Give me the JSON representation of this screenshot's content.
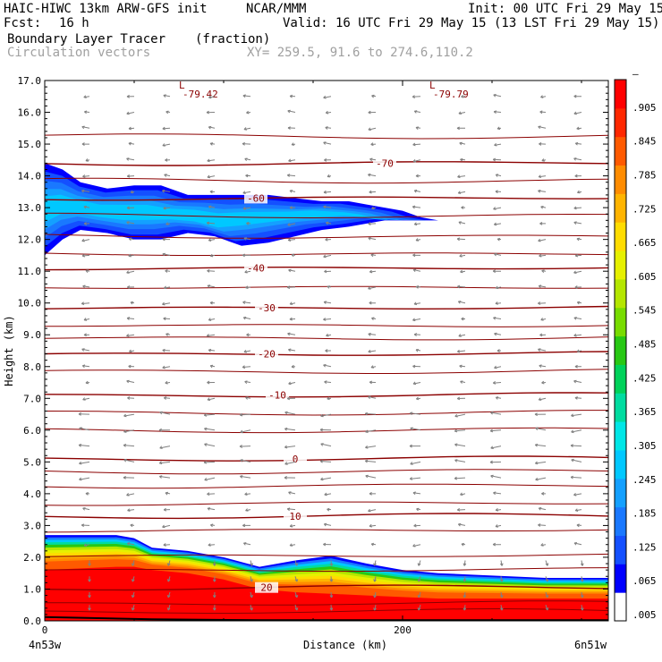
{
  "header": {
    "model": "HAIC-HIWC 13km ARW-GFS init",
    "center": "NCAR/MMM",
    "init": "Init: 00 UTC Fri 29 May 15",
    "fcst_label": "Fcst:",
    "fcst_value": "16 h",
    "valid": "Valid: 16 UTC Fri 29 May 15 (13 LST Fri 29 May 15)",
    "field_name": "Boundary Layer Tracer",
    "field_units": "(fraction)",
    "vectors_label": "Circulation vectors",
    "xy": "XY= 259.5, 91.6 to 274.6,110.2"
  },
  "chart_data": {
    "type": "heatmap",
    "title": "Boundary Layer Tracer",
    "xlabel": "Distance (km)",
    "ylabel": "Height (km)",
    "xlim": [
      0,
      315
    ],
    "ylim": [
      0,
      17
    ],
    "x_ticks": [
      {
        "value": 0,
        "label": "0"
      },
      {
        "value": 200,
        "label": "200"
      }
    ],
    "x_end_labels": {
      "left": "4n53w",
      "right": "6n51w"
    },
    "y_ticks": [
      "0.0",
      "1.0",
      "2.0",
      "3.0",
      "4.0",
      "5.0",
      "6.0",
      "7.0",
      "8.0",
      "9.0",
      "10.0",
      "11.0",
      "12.0",
      "13.0",
      "14.0",
      "15.0",
      "16.0",
      "17.0"
    ],
    "colorbar": {
      "labels": [
        ".005",
        ".065",
        ".125",
        ".185",
        ".245",
        ".305",
        ".365",
        ".425",
        ".485",
        ".545",
        ".605",
        ".665",
        ".725",
        ".785",
        ".845",
        ".905",
        "–"
      ],
      "colors": [
        "#ffffff",
        "#0000ff",
        "#1450ff",
        "#1a78ff",
        "#14a0ff",
        "#00c8ff",
        "#00e6e6",
        "#00dca0",
        "#00d25a",
        "#28c814",
        "#78dc00",
        "#b4e600",
        "#e6f000",
        "#ffdc00",
        "#ffb400",
        "#ff8c00",
        "#ff5a00",
        "#ff2800",
        "#ff0000"
      ]
    },
    "upper_layer": {
      "top_km": [
        14.4,
        14.2,
        13.8,
        13.6,
        13.7,
        13.7,
        13.4,
        13.4,
        13.4,
        13.4,
        13.3,
        13.2,
        13.2,
        13.1,
        13.0,
        12.9,
        12.7,
        12.6
      ],
      "bottom_km": [
        11.5,
        12.0,
        12.3,
        12.2,
        12.0,
        12.0,
        12.2,
        12.1,
        11.8,
        11.9,
        12.1,
        12.3,
        12.4,
        12.5,
        12.6,
        12.6,
        12.6,
        12.6
      ],
      "x_km": [
        0,
        10,
        20,
        35,
        50,
        65,
        80,
        95,
        110,
        125,
        140,
        155,
        170,
        180,
        190,
        200,
        210,
        220
      ],
      "core_value": 0.185
    },
    "boundary_layer": {
      "x_km": [
        0,
        20,
        40,
        50,
        60,
        80,
        100,
        120,
        140,
        160,
        180,
        200,
        220,
        240,
        260,
        280,
        300,
        315
      ],
      "top_km": [
        2.7,
        2.7,
        2.7,
        2.6,
        2.3,
        2.2,
        2.0,
        1.7,
        1.9,
        2.05,
        1.8,
        1.6,
        1.5,
        1.45,
        1.4,
        1.35,
        1.35,
        1.35
      ],
      "red_top_km": [
        1.6,
        1.65,
        1.7,
        1.7,
        1.6,
        1.5,
        1.3,
        1.0,
        0.9,
        0.85,
        0.8,
        0.75,
        0.7,
        0.7,
        0.7,
        0.7,
        0.7,
        0.7
      ]
    },
    "temperature_contours": [
      {
        "label": "-70",
        "label_x_km": 190,
        "z_km": 14.4
      },
      {
        "label": "-60",
        "label_x_km": 118,
        "z_km": 13.3
      },
      {
        "label": "-40",
        "label_x_km": 118,
        "z_km": 11.1
      },
      {
        "label": "-30",
        "label_x_km": 124,
        "z_km": 9.85
      },
      {
        "label": "-20",
        "label_x_km": 124,
        "z_km": 8.4
      },
      {
        "label": "-10",
        "label_x_km": 130,
        "z_km": 7.1
      },
      {
        "label": "0",
        "label_x_km": 140,
        "z_km": 5.1
      },
      {
        "label": "10",
        "label_x_km": 140,
        "z_km": 3.3
      },
      {
        "label": "20",
        "label_x_km": 124,
        "z_km": 1.05
      }
    ],
    "extra_isotherms_km": [
      15.25,
      13.85,
      12.75,
      12.1,
      11.55,
      10.5,
      9.3,
      8.9,
      7.85,
      6.55,
      6.0,
      4.7,
      4.25,
      3.7,
      2.85,
      2.05,
      1.6,
      0.55,
      0.3
    ],
    "min_markers": [
      {
        "label": "L",
        "value": "-79.42",
        "x_km": 82
      },
      {
        "label": "L",
        "value": "-79.79",
        "x_km": 222
      }
    ],
    "vectors": {
      "columns_x_km": [
        25,
        50,
        70,
        95,
        115,
        140,
        160,
        185,
        210,
        235,
        255,
        280,
        300
      ],
      "levels_km": [
        0.5,
        0.9,
        1.4,
        1.9,
        2.4,
        3.0,
        3.5,
        4.0,
        4.5,
        5.0,
        5.5,
        6.0,
        6.5,
        7.0,
        7.5,
        8.0,
        8.5,
        9.0,
        9.5,
        10.0,
        10.5,
        11.0,
        11.5,
        12.0,
        12.5,
        13.0,
        13.5,
        14.0,
        14.5,
        15.0,
        15.5,
        16.0,
        16.5
      ],
      "color": "#808080"
    }
  }
}
